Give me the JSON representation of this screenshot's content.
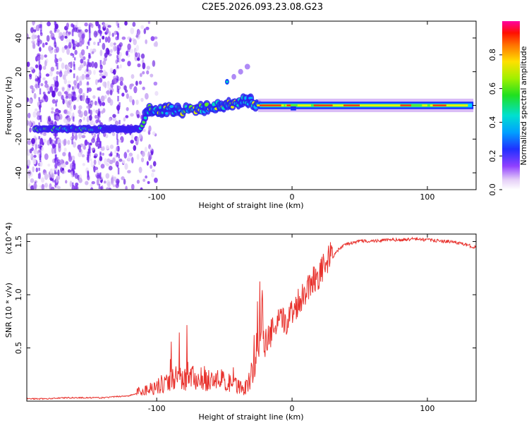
{
  "title": "C2E5.2026.093.23.08.G23",
  "chart_data": [
    {
      "type": "heatmap",
      "name": "spectrogram",
      "xlabel": "Height of straight line (km)",
      "ylabel": "Frequency (Hz)",
      "xlim": [
        -196,
        136
      ],
      "ylim": [
        -50,
        50
      ],
      "xticks": [
        -100,
        0,
        100
      ],
      "yticks": [
        -40,
        -20,
        0,
        20,
        40
      ],
      "colorbar": {
        "label": "Normalized spectral amplitude",
        "range": [
          0,
          1
        ],
        "ticks": [
          0.0,
          0.2,
          0.4,
          0.6,
          0.8
        ],
        "tick_labels": [
          "0.0",
          "0.2",
          "0.4",
          "0.6",
          "0.8"
        ]
      },
      "ridge": [
        {
          "x": -190,
          "f": -14
        },
        {
          "x": -170,
          "f": -14
        },
        {
          "x": -150,
          "f": -14
        },
        {
          "x": -130,
          "f": -14
        },
        {
          "x": -112,
          "f": -14
        },
        {
          "x": -106,
          "f": -3
        },
        {
          "x": -95,
          "f": -2
        },
        {
          "x": -85,
          "f": -3
        },
        {
          "x": -75,
          "f": -2
        },
        {
          "x": -65,
          "f": -2
        },
        {
          "x": -55,
          "f": 0
        },
        {
          "x": -45,
          "f": 1
        },
        {
          "x": -35,
          "f": 3
        },
        {
          "x": -28,
          "f": 2
        },
        {
          "x": -25,
          "f": 0
        },
        {
          "x": 0,
          "f": 0
        },
        {
          "x": 50,
          "f": 0
        },
        {
          "x": 100,
          "f": 0
        },
        {
          "x": 134,
          "f": 0
        }
      ],
      "secondary_feature": [
        {
          "x": -48,
          "f": 14
        },
        {
          "x": -43,
          "f": 17
        },
        {
          "x": -38,
          "f": 20
        },
        {
          "x": -33,
          "f": 23
        }
      ]
    },
    {
      "type": "line",
      "name": "snr",
      "xlabel": "Height of straight line (km)",
      "ylabel": "SNR (10 * v/v)",
      "scale_label": "(x10^4)",
      "xlim": [
        -196,
        136
      ],
      "ylim": [
        0,
        1.57
      ],
      "xticks": [
        -100,
        0,
        100
      ],
      "yticks": [
        0.5,
        1.0,
        1.5
      ],
      "ytick_labels": [
        "0.5",
        "1.0",
        "1.5"
      ],
      "series": [
        {
          "name": "SNR",
          "color": "#e8322d",
          "x": [
            -196,
            -180,
            -170,
            -160,
            -150,
            -140,
            -130,
            -120,
            -115,
            -110,
            -105,
            -100,
            -95,
            -90,
            -85,
            -80,
            -75,
            -70,
            -65,
            -60,
            -55,
            -50,
            -45,
            -40,
            -35,
            -30,
            -27,
            -25,
            -20,
            -15,
            -10,
            -5,
            0,
            5,
            10,
            15,
            20,
            25,
            30,
            35,
            40,
            50,
            60,
            70,
            80,
            90,
            100,
            110,
            120,
            130,
            136
          ],
          "y": [
            0.02,
            0.02,
            0.03,
            0.03,
            0.03,
            0.03,
            0.04,
            0.05,
            0.07,
            0.08,
            0.1,
            0.12,
            0.14,
            0.17,
            0.18,
            0.17,
            0.18,
            0.19,
            0.18,
            0.16,
            0.17,
            0.16,
            0.13,
            0.12,
            0.1,
            0.2,
            0.45,
            0.5,
            0.5,
            0.6,
            0.7,
            0.7,
            0.8,
            0.9,
            1.0,
            1.1,
            1.15,
            1.25,
            1.35,
            1.43,
            1.47,
            1.5,
            1.5,
            1.51,
            1.51,
            1.52,
            1.51,
            1.5,
            1.49,
            1.46,
            1.44
          ]
        }
      ]
    }
  ]
}
